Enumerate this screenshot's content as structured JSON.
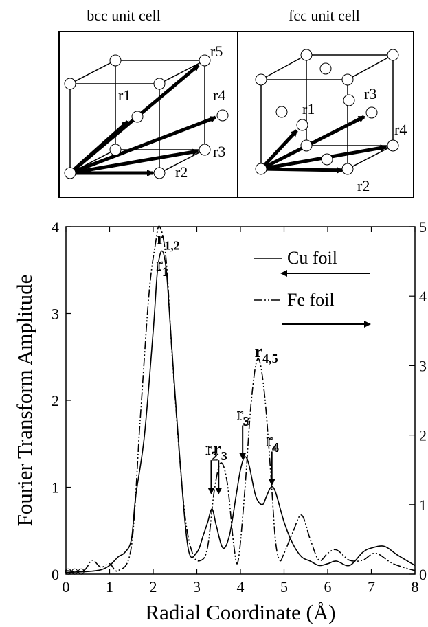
{
  "panels": {
    "bcc": {
      "title": "bcc unit cell",
      "labels": {
        "r1": "r1",
        "r2": "r2",
        "r3": "r3",
        "r4": "r4",
        "r5": "r5"
      }
    },
    "fcc": {
      "title": "fcc unit cell",
      "labels": {
        "r1": "r1",
        "r2": "r2",
        "r3": "r3",
        "r4": "r4"
      }
    }
  },
  "chart_data": {
    "type": "line",
    "xlabel": "Radial Coordinate (Å)",
    "ylabel": "Fourier Transform Amplitude",
    "xlim": [
      0,
      8
    ],
    "ylim_left": [
      0,
      4
    ],
    "ylim_right": [
      0,
      5
    ],
    "x_ticks": [
      "0",
      "1",
      "2",
      "3",
      "4",
      "5",
      "6",
      "7",
      "8"
    ],
    "y_ticks_left": [
      "0",
      "1",
      "2",
      "3",
      "4"
    ],
    "y_ticks_right": [
      "0",
      "1",
      "2",
      "3",
      "4",
      "5"
    ],
    "legend": [
      {
        "label": "Cu foil",
        "style": "solid",
        "axis": "left"
      },
      {
        "label": "Fe foil",
        "style": "dash-dot-dot",
        "axis": "right"
      }
    ],
    "series": [
      {
        "name": "Cu foil",
        "axis": "left",
        "x": [
          0,
          0.5,
          0.8,
          1.0,
          1.2,
          1.35,
          1.5,
          1.6,
          1.8,
          2.0,
          2.1,
          2.2,
          2.3,
          2.4,
          2.6,
          2.8,
          3.0,
          3.15,
          3.25,
          3.35,
          3.45,
          3.6,
          3.75,
          3.9,
          4.0,
          4.1,
          4.2,
          4.35,
          4.5,
          4.6,
          4.7,
          4.8,
          5.0,
          5.2,
          5.4,
          5.6,
          5.8,
          6.0,
          6.2,
          6.5,
          6.8,
          7.0,
          7.3,
          7.6,
          8.0
        ],
        "y": [
          0.02,
          0.03,
          0.05,
          0.1,
          0.2,
          0.25,
          0.4,
          0.9,
          1.6,
          2.8,
          3.5,
          3.72,
          3.5,
          2.8,
          1.4,
          0.3,
          0.25,
          0.45,
          0.6,
          0.75,
          0.55,
          0.3,
          0.45,
          0.9,
          1.2,
          1.35,
          1.25,
          0.9,
          0.8,
          0.9,
          1.0,
          0.95,
          0.6,
          0.35,
          0.2,
          0.15,
          0.1,
          0.12,
          0.15,
          0.1,
          0.25,
          0.3,
          0.32,
          0.22,
          0.1
        ]
      },
      {
        "name": "Fe foil",
        "axis": "right",
        "x": [
          0,
          0.4,
          0.6,
          0.8,
          1.0,
          1.2,
          1.5,
          1.7,
          1.9,
          2.05,
          2.15,
          2.3,
          2.45,
          2.7,
          2.9,
          3.1,
          3.25,
          3.4,
          3.55,
          3.7,
          3.85,
          3.95,
          4.1,
          4.25,
          4.4,
          4.55,
          4.7,
          4.8,
          4.9,
          5.0,
          5.2,
          5.4,
          5.6,
          5.8,
          6.0,
          6.2,
          6.5,
          6.8,
          7.1,
          7.5,
          8.0
        ],
        "y": [
          0.05,
          0.05,
          0.2,
          0.1,
          0.15,
          0.05,
          0.4,
          2.2,
          4.0,
          4.75,
          5.0,
          4.5,
          3.0,
          1.0,
          0.3,
          0.2,
          0.4,
          1.2,
          1.6,
          1.3,
          0.4,
          0.2,
          1.2,
          2.5,
          3.1,
          2.6,
          1.4,
          0.5,
          0.2,
          0.3,
          0.6,
          0.85,
          0.5,
          0.2,
          0.3,
          0.35,
          0.2,
          0.2,
          0.3,
          0.15,
          0.05
        ]
      }
    ],
    "annotations": [
      {
        "id": "r12_cu",
        "text": "r1,2",
        "x": 2.2,
        "y_left": 3.8,
        "bold": true
      },
      {
        "id": "r1_fe",
        "text": "r1",
        "x": 2.2,
        "y_left": 3.5,
        "outlined": true
      },
      {
        "id": "r3_cu",
        "text": "r3",
        "x": 3.5,
        "arrow_to": 0.9,
        "bold": true
      },
      {
        "id": "r2_fe",
        "text": "r2",
        "x": 3.33,
        "arrow_to": 0.9,
        "outlined": true
      },
      {
        "id": "r3_fe",
        "text": "r3",
        "x": 4.05,
        "arrow_to": 1.3,
        "outlined": true
      },
      {
        "id": "r45_cu",
        "text": "r4,5",
        "x": 4.45,
        "y_left": 2.5,
        "bold": true
      },
      {
        "id": "r4_fe",
        "text": "r4",
        "x": 4.72,
        "arrow_to": 1.0,
        "outlined": true
      }
    ]
  }
}
